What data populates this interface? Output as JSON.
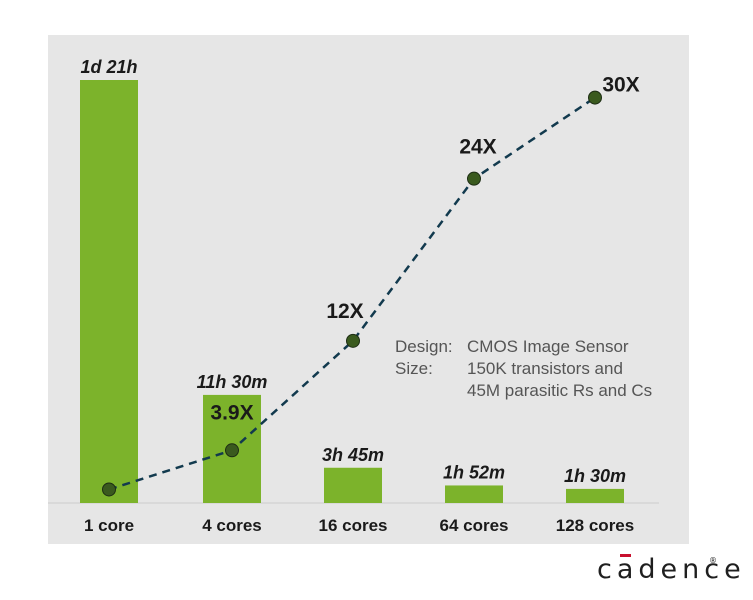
{
  "chart_data": {
    "type": "bar",
    "categories": [
      "1 core",
      "4 cores",
      "16 cores",
      "64 cores",
      "128 cores"
    ],
    "values_minutes": [
      2700,
      690,
      225,
      112,
      90
    ],
    "bar_labels": [
      "1d 21h",
      "11h 30m",
      "3h 45m",
      "1h 52m",
      "1h 30m"
    ],
    "ylim": [
      0,
      2700
    ],
    "grid": false,
    "bar_color": "#7cb32b",
    "background_color": "#e6e6e6",
    "overlay": {
      "type": "line",
      "style": "dashed",
      "color": "#123a4e",
      "marker_color": "#3a5a1e",
      "values": [
        1,
        3.9,
        12,
        24,
        30
      ],
      "labels": [
        "",
        "3.9X",
        "12X",
        "24X",
        "30X"
      ],
      "ylim": [
        0,
        31.3
      ]
    }
  },
  "annotation": {
    "lines": [
      {
        "key": "Design:",
        "value": "CMOS Image Sensor"
      },
      {
        "key": "Size:",
        "value": "150K transistors and"
      },
      {
        "key": "",
        "value": "45M parasitic Rs and Cs"
      }
    ]
  },
  "logo": {
    "text": "cadence",
    "mark": "®",
    "accent_color": "#c8102e"
  }
}
